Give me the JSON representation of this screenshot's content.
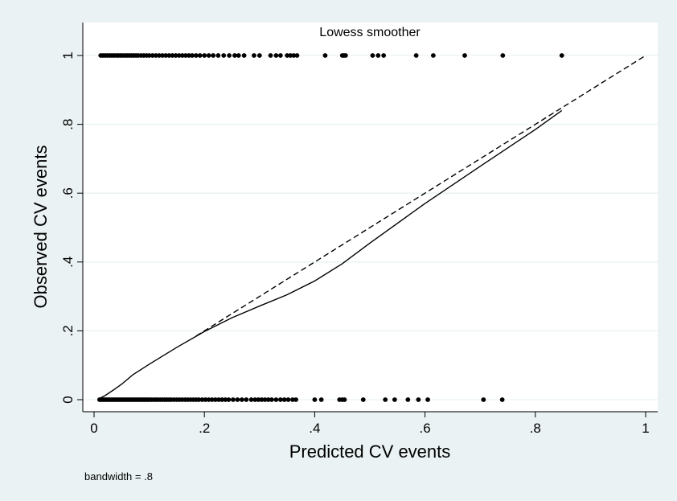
{
  "chart_data": {
    "type": "scatter",
    "title": "Lowess smoother",
    "xlabel": "Predicted CV events",
    "ylabel": "Observed CV events",
    "note": "bandwidth = .8",
    "xlim": [
      0,
      1
    ],
    "ylim": [
      0,
      1
    ],
    "xticks": [
      0,
      0.2,
      0.4,
      0.6,
      0.8,
      1
    ],
    "yticks": [
      0,
      0.2,
      0.4,
      0.6,
      0.8,
      1
    ],
    "xtick_labels": [
      "0",
      ".2",
      ".4",
      ".6",
      ".8",
      "1"
    ],
    "ytick_labels": [
      "0",
      ".2",
      ".4",
      ".6",
      ".8",
      "1"
    ],
    "grid": true,
    "series": [
      {
        "kind": "scatter",
        "points": [
          {
            "x": 0.01,
            "y": 0
          },
          {
            "x": 0.013,
            "y": 0
          },
          {
            "x": 0.016,
            "y": 0
          },
          {
            "x": 0.019,
            "y": 0
          },
          {
            "x": 0.022,
            "y": 0
          },
          {
            "x": 0.025,
            "y": 0
          },
          {
            "x": 0.028,
            "y": 0
          },
          {
            "x": 0.031,
            "y": 0
          },
          {
            "x": 0.034,
            "y": 0
          },
          {
            "x": 0.037,
            "y": 0
          },
          {
            "x": 0.04,
            "y": 0
          },
          {
            "x": 0.043,
            "y": 0
          },
          {
            "x": 0.046,
            "y": 0
          },
          {
            "x": 0.049,
            "y": 0
          },
          {
            "x": 0.052,
            "y": 0
          },
          {
            "x": 0.055,
            "y": 0
          },
          {
            "x": 0.058,
            "y": 0
          },
          {
            "x": 0.061,
            "y": 0
          },
          {
            "x": 0.064,
            "y": 0
          },
          {
            "x": 0.067,
            "y": 0
          },
          {
            "x": 0.07,
            "y": 0
          },
          {
            "x": 0.073,
            "y": 0
          },
          {
            "x": 0.076,
            "y": 0
          },
          {
            "x": 0.079,
            "y": 0
          },
          {
            "x": 0.082,
            "y": 0
          },
          {
            "x": 0.085,
            "y": 0
          },
          {
            "x": 0.088,
            "y": 0
          },
          {
            "x": 0.091,
            "y": 0
          },
          {
            "x": 0.094,
            "y": 0
          },
          {
            "x": 0.097,
            "y": 0
          },
          {
            "x": 0.1,
            "y": 0
          },
          {
            "x": 0.104,
            "y": 0
          },
          {
            "x": 0.108,
            "y": 0
          },
          {
            "x": 0.112,
            "y": 0
          },
          {
            "x": 0.116,
            "y": 0
          },
          {
            "x": 0.12,
            "y": 0
          },
          {
            "x": 0.124,
            "y": 0
          },
          {
            "x": 0.128,
            "y": 0
          },
          {
            "x": 0.132,
            "y": 0
          },
          {
            "x": 0.136,
            "y": 0
          },
          {
            "x": 0.14,
            "y": 0
          },
          {
            "x": 0.145,
            "y": 0
          },
          {
            "x": 0.15,
            "y": 0
          },
          {
            "x": 0.155,
            "y": 0
          },
          {
            "x": 0.16,
            "y": 0
          },
          {
            "x": 0.165,
            "y": 0
          },
          {
            "x": 0.17,
            "y": 0
          },
          {
            "x": 0.175,
            "y": 0
          },
          {
            "x": 0.18,
            "y": 0
          },
          {
            "x": 0.185,
            "y": 0
          },
          {
            "x": 0.19,
            "y": 0
          },
          {
            "x": 0.196,
            "y": 0
          },
          {
            "x": 0.202,
            "y": 0
          },
          {
            "x": 0.208,
            "y": 0
          },
          {
            "x": 0.214,
            "y": 0
          },
          {
            "x": 0.22,
            "y": 0
          },
          {
            "x": 0.226,
            "y": 0
          },
          {
            "x": 0.232,
            "y": 0
          },
          {
            "x": 0.238,
            "y": 0
          },
          {
            "x": 0.244,
            "y": 0
          },
          {
            "x": 0.252,
            "y": 0
          },
          {
            "x": 0.26,
            "y": 0
          },
          {
            "x": 0.268,
            "y": 0
          },
          {
            "x": 0.276,
            "y": 0
          },
          {
            "x": 0.285,
            "y": 0
          },
          {
            "x": 0.292,
            "y": 0
          },
          {
            "x": 0.298,
            "y": 0
          },
          {
            "x": 0.304,
            "y": 0
          },
          {
            "x": 0.31,
            "y": 0
          },
          {
            "x": 0.316,
            "y": 0
          },
          {
            "x": 0.322,
            "y": 0
          },
          {
            "x": 0.33,
            "y": 0
          },
          {
            "x": 0.338,
            "y": 0
          },
          {
            "x": 0.345,
            "y": 0
          },
          {
            "x": 0.352,
            "y": 0
          },
          {
            "x": 0.36,
            "y": 0
          },
          {
            "x": 0.366,
            "y": 0
          },
          {
            "x": 0.4,
            "y": 0
          },
          {
            "x": 0.412,
            "y": 0
          },
          {
            "x": 0.445,
            "y": 0
          },
          {
            "x": 0.45,
            "y": 0
          },
          {
            "x": 0.454,
            "y": 0
          },
          {
            "x": 0.488,
            "y": 0
          },
          {
            "x": 0.528,
            "y": 0
          },
          {
            "x": 0.545,
            "y": 0
          },
          {
            "x": 0.569,
            "y": 0
          },
          {
            "x": 0.588,
            "y": 0
          },
          {
            "x": 0.605,
            "y": 0
          },
          {
            "x": 0.706,
            "y": 0
          },
          {
            "x": 0.74,
            "y": 0
          },
          {
            "x": 0.012,
            "y": 1
          },
          {
            "x": 0.016,
            "y": 1
          },
          {
            "x": 0.02,
            "y": 1
          },
          {
            "x": 0.024,
            "y": 1
          },
          {
            "x": 0.028,
            "y": 1
          },
          {
            "x": 0.032,
            "y": 1
          },
          {
            "x": 0.036,
            "y": 1
          },
          {
            "x": 0.04,
            "y": 1
          },
          {
            "x": 0.044,
            "y": 1
          },
          {
            "x": 0.048,
            "y": 1
          },
          {
            "x": 0.052,
            "y": 1
          },
          {
            "x": 0.056,
            "y": 1
          },
          {
            "x": 0.06,
            "y": 1
          },
          {
            "x": 0.064,
            "y": 1
          },
          {
            "x": 0.068,
            "y": 1
          },
          {
            "x": 0.072,
            "y": 1
          },
          {
            "x": 0.076,
            "y": 1
          },
          {
            "x": 0.08,
            "y": 1
          },
          {
            "x": 0.085,
            "y": 1
          },
          {
            "x": 0.09,
            "y": 1
          },
          {
            "x": 0.095,
            "y": 1
          },
          {
            "x": 0.1,
            "y": 1
          },
          {
            "x": 0.106,
            "y": 1
          },
          {
            "x": 0.112,
            "y": 1
          },
          {
            "x": 0.118,
            "y": 1
          },
          {
            "x": 0.124,
            "y": 1
          },
          {
            "x": 0.13,
            "y": 1
          },
          {
            "x": 0.136,
            "y": 1
          },
          {
            "x": 0.142,
            "y": 1
          },
          {
            "x": 0.148,
            "y": 1
          },
          {
            "x": 0.154,
            "y": 1
          },
          {
            "x": 0.16,
            "y": 1
          },
          {
            "x": 0.166,
            "y": 1
          },
          {
            "x": 0.172,
            "y": 1
          },
          {
            "x": 0.178,
            "y": 1
          },
          {
            "x": 0.185,
            "y": 1
          },
          {
            "x": 0.192,
            "y": 1
          },
          {
            "x": 0.2,
            "y": 1
          },
          {
            "x": 0.208,
            "y": 1
          },
          {
            "x": 0.216,
            "y": 1
          },
          {
            "x": 0.225,
            "y": 1
          },
          {
            "x": 0.235,
            "y": 1
          },
          {
            "x": 0.245,
            "y": 1
          },
          {
            "x": 0.255,
            "y": 1
          },
          {
            "x": 0.262,
            "y": 1
          },
          {
            "x": 0.272,
            "y": 1
          },
          {
            "x": 0.29,
            "y": 1
          },
          {
            "x": 0.3,
            "y": 1
          },
          {
            "x": 0.32,
            "y": 1
          },
          {
            "x": 0.33,
            "y": 1
          },
          {
            "x": 0.338,
            "y": 1
          },
          {
            "x": 0.35,
            "y": 1
          },
          {
            "x": 0.356,
            "y": 1
          },
          {
            "x": 0.362,
            "y": 1
          },
          {
            "x": 0.368,
            "y": 1
          },
          {
            "x": 0.419,
            "y": 1
          },
          {
            "x": 0.45,
            "y": 1
          },
          {
            "x": 0.453,
            "y": 1
          },
          {
            "x": 0.456,
            "y": 1
          },
          {
            "x": 0.505,
            "y": 1
          },
          {
            "x": 0.515,
            "y": 1
          },
          {
            "x": 0.525,
            "y": 1
          },
          {
            "x": 0.584,
            "y": 1
          },
          {
            "x": 0.615,
            "y": 1
          },
          {
            "x": 0.672,
            "y": 1
          },
          {
            "x": 0.741,
            "y": 1
          },
          {
            "x": 0.848,
            "y": 1
          }
        ]
      },
      {
        "kind": "lowess-line",
        "points": [
          {
            "x": 0.008,
            "y": 0.002
          },
          {
            "x": 0.02,
            "y": 0.012
          },
          {
            "x": 0.035,
            "y": 0.028
          },
          {
            "x": 0.05,
            "y": 0.045
          },
          {
            "x": 0.07,
            "y": 0.072
          },
          {
            "x": 0.1,
            "y": 0.103
          },
          {
            "x": 0.15,
            "y": 0.152
          },
          {
            "x": 0.2,
            "y": 0.198
          },
          {
            "x": 0.25,
            "y": 0.238
          },
          {
            "x": 0.3,
            "y": 0.272
          },
          {
            "x": 0.35,
            "y": 0.305
          },
          {
            "x": 0.4,
            "y": 0.345
          },
          {
            "x": 0.45,
            "y": 0.395
          },
          {
            "x": 0.5,
            "y": 0.455
          },
          {
            "x": 0.6,
            "y": 0.57
          },
          {
            "x": 0.7,
            "y": 0.678
          },
          {
            "x": 0.8,
            "y": 0.785
          },
          {
            "x": 0.848,
            "y": 0.84
          }
        ]
      },
      {
        "kind": "reference-line",
        "points": [
          {
            "x": 0.185,
            "y": 0.185
          },
          {
            "x": 1,
            "y": 1
          }
        ]
      }
    ]
  }
}
